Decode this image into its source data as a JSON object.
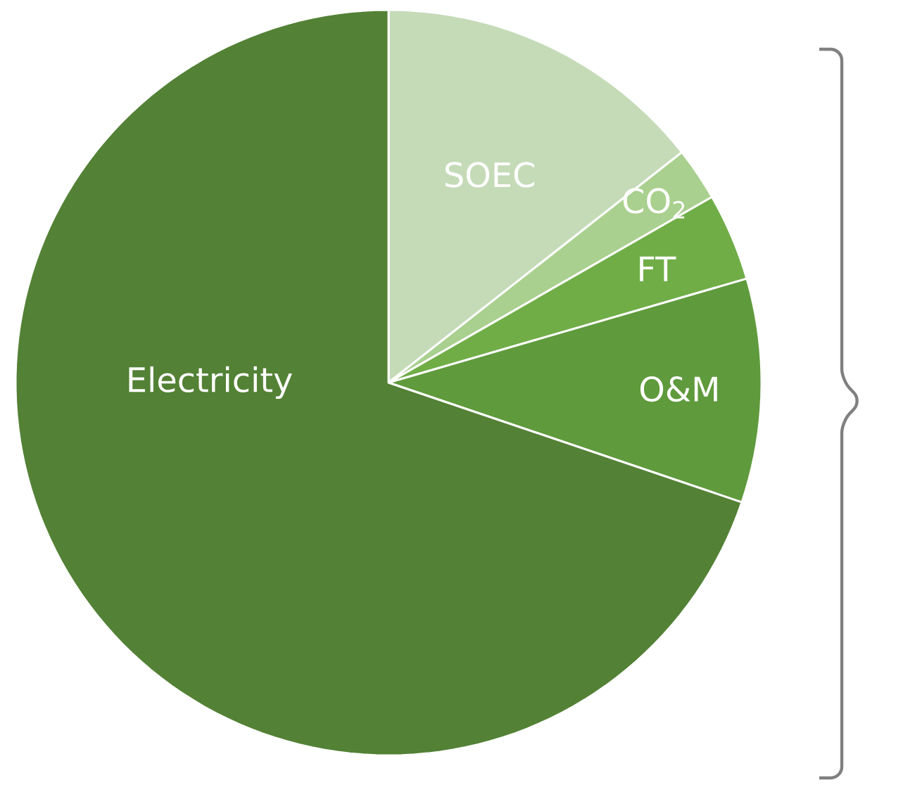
{
  "chart_data": {
    "type": "pie",
    "categories": [
      "SOEC",
      "CO$_{2}$",
      "FT",
      "O&M",
      "Electricity"
    ],
    "values": [
      14.4,
      2.3,
      3.8,
      9.7,
      69.8
    ],
    "colors": [
      "#c5dbb8",
      "#a9d08e",
      "#70ad47",
      "#5f9a3c",
      "#538135"
    ]
  }
}
